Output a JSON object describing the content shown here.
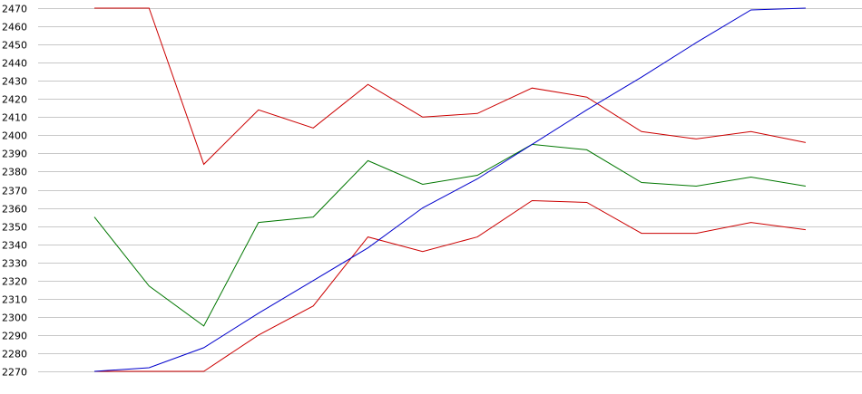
{
  "chart_data": {
    "type": "line",
    "ylim": [
      2270,
      2470
    ],
    "yticks": [
      2270,
      2280,
      2290,
      2300,
      2310,
      2320,
      2330,
      2340,
      2350,
      2360,
      2370,
      2380,
      2390,
      2400,
      2410,
      2420,
      2430,
      2440,
      2450,
      2460,
      2470
    ],
    "grid": true,
    "legend": "none",
    "x": [
      1,
      2,
      3,
      4,
      5,
      6,
      7,
      8,
      9,
      10,
      11,
      12,
      13,
      14
    ],
    "series": [
      {
        "color": "#cc0000",
        "values": [
          2470,
          2470,
          2384,
          2414,
          2404,
          2428,
          2410,
          2412,
          2426,
          2421,
          2402,
          2398,
          2402,
          2396
        ]
      },
      {
        "color": "#007700",
        "values": [
          2355,
          2317,
          2295,
          2352,
          2355,
          2386,
          2373,
          2378,
          2395,
          2392,
          2374,
          2372,
          2377,
          2372
        ]
      },
      {
        "color": "#cc0000",
        "values": [
          2270,
          2270,
          2270,
          2290,
          2306,
          2344,
          2336,
          2344,
          2364,
          2363,
          2346,
          2346,
          2352,
          2348
        ]
      },
      {
        "color": "#0000cc",
        "values": [
          2270,
          2272,
          2283,
          2302,
          2320,
          2338,
          2360,
          2376,
          2395,
          2414,
          2432,
          2451,
          2469,
          2470
        ]
      }
    ]
  }
}
